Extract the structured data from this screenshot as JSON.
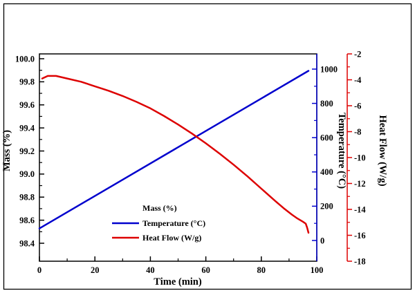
{
  "figure": {
    "background": "#ffffff",
    "border_color": "#000000"
  },
  "chart_data": {
    "type": "line",
    "title": "",
    "x_axis": {
      "label": "Time (min)",
      "range": [
        0,
        100
      ],
      "major_ticks": [
        0,
        20,
        40,
        60,
        80,
        100
      ],
      "minor_step": 10
    },
    "y_axis_left": {
      "label": "Mass (%)",
      "tick_labels": [
        "100.0",
        "99.8",
        "99.6",
        "99.4",
        "99.2",
        "99.0",
        "98.8",
        "98.6",
        "98.4"
      ],
      "color": "#000000"
    },
    "y_axis_right_inner": {
      "label": "Temperature (°C)",
      "range": [
        0,
        1000
      ],
      "major_ticks": [
        0,
        200,
        400,
        600,
        800,
        1000
      ],
      "minor_step": 100,
      "color": "#0000cd"
    },
    "y_axis_right_outer": {
      "label": "Heat Flow (W/g)",
      "range": [
        -18,
        -2
      ],
      "major_ticks": [
        -2,
        -4,
        -6,
        -8,
        -10,
        -12,
        -14,
        -16,
        -18
      ],
      "minor_step": 1,
      "color": "#dd0000"
    },
    "series": [
      {
        "name": "Temperature (°C)",
        "axis": "temperature",
        "color": "#0000cd",
        "points": [
          [
            0,
            70
          ],
          [
            97,
            990
          ]
        ]
      },
      {
        "name": "Heat Flow (W/g)",
        "axis": "heat_flow",
        "color": "#dd0000",
        "points": [
          [
            1,
            -3.9
          ],
          [
            3,
            -3.7
          ],
          [
            6,
            -3.7
          ],
          [
            10,
            -3.9
          ],
          [
            15,
            -4.15
          ],
          [
            20,
            -4.5
          ],
          [
            25,
            -4.85
          ],
          [
            30,
            -5.25
          ],
          [
            35,
            -5.7
          ],
          [
            40,
            -6.2
          ],
          [
            45,
            -6.8
          ],
          [
            50,
            -7.45
          ],
          [
            55,
            -8.15
          ],
          [
            60,
            -8.9
          ],
          [
            65,
            -9.7
          ],
          [
            70,
            -10.55
          ],
          [
            75,
            -11.45
          ],
          [
            80,
            -12.4
          ],
          [
            85,
            -13.35
          ],
          [
            88,
            -13.9
          ],
          [
            91,
            -14.4
          ],
          [
            93,
            -14.7
          ],
          [
            95,
            -14.95
          ],
          [
            96,
            -15.1
          ],
          [
            96.5,
            -15.4
          ],
          [
            97,
            -15.8
          ]
        ]
      }
    ],
    "legend": {
      "entries": [
        {
          "label": "Mass (%)",
          "color": "#000000",
          "line_sample": false
        },
        {
          "label": "Temperature (°C)",
          "color": "#0000cd",
          "line_sample": true
        },
        {
          "label": "Heat Flow (W/g)",
          "color": "#dd0000",
          "line_sample": true
        }
      ]
    }
  }
}
